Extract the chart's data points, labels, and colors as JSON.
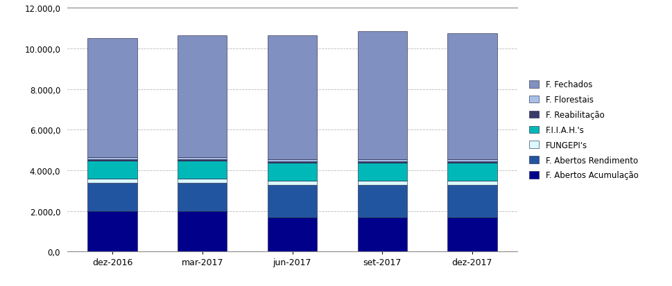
{
  "categories": [
    "dez-2016",
    "mar-2017",
    "jun-2017",
    "set-2017",
    "dez-2017"
  ],
  "series": [
    {
      "label": "F. Abertos Acumulação",
      "color": "#00008B",
      "values": [
        2000,
        2000,
        1680,
        1680,
        1680
      ]
    },
    {
      "label": "F. Abertos Rendimento",
      "color": "#2255A0",
      "values": [
        1380,
        1380,
        1600,
        1600,
        1600
      ]
    },
    {
      "label": "FUNGEPI's",
      "color": "#DAFAFF",
      "values": [
        220,
        220,
        220,
        220,
        220
      ]
    },
    {
      "label": "F.I.I.A.H.'s",
      "color": "#00B8B8",
      "values": [
        880,
        880,
        880,
        880,
        880
      ]
    },
    {
      "label": "F. Reabilitação",
      "color": "#3A3A6A",
      "values": [
        80,
        80,
        80,
        80,
        80
      ]
    },
    {
      "label": "F. Florestais",
      "color": "#A8C0E8",
      "values": [
        80,
        80,
        80,
        80,
        80
      ]
    },
    {
      "label": "F. Fechados",
      "color": "#8090C0",
      "values": [
        5862,
        6012,
        6112,
        6312,
        6212
      ]
    }
  ],
  "ylim": [
    0,
    12000
  ],
  "yticks": [
    0,
    2000,
    4000,
    6000,
    8000,
    10000,
    12000
  ],
  "ytick_labels": [
    "0,0",
    "2.000,0",
    "4.000,0",
    "6.000,0",
    "8.000,0",
    "10.000,0",
    "12.000,0"
  ],
  "bar_width": 0.55,
  "background_color": "#FFFFFF",
  "grid_color": "#999999"
}
